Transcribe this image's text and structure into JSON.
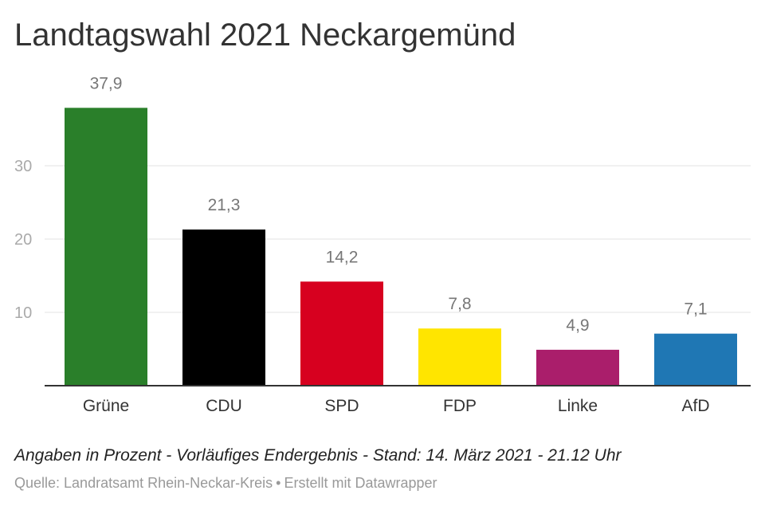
{
  "title": "Landtagswahl 2021 Neckargemünd",
  "notes": "Angaben in Prozent - Vorläufiges Endergebnis - Stand: 14. März 2021 - 21.12 Uhr",
  "source": {
    "quelle": "Quelle: Landratsamt Rhein-Neckar-Kreis",
    "separator": "•",
    "credit": "Erstellt mit Datawrapper"
  },
  "chart_data": {
    "type": "bar",
    "title": "Landtagswahl 2021 Neckargemünd",
    "xlabel": "",
    "ylabel": "",
    "categories": [
      "Grüne",
      "CDU",
      "SPD",
      "FDP",
      "Linke",
      "AfD"
    ],
    "values": [
      37.9,
      21.3,
      14.2,
      7.8,
      4.9,
      7.1
    ],
    "value_labels": [
      "37,9",
      "21,3",
      "14,2",
      "7,8",
      "4,9",
      "7,1"
    ],
    "colors": [
      "#2a7f2a",
      "#000000",
      "#d7001f",
      "#ffe500",
      "#aa1e6b",
      "#1f77b4"
    ],
    "yticks": [
      10,
      20,
      30
    ],
    "ytick_labels": [
      "10",
      "20",
      "30"
    ],
    "ylim": [
      0,
      40
    ],
    "grid": true,
    "legend": "none"
  }
}
